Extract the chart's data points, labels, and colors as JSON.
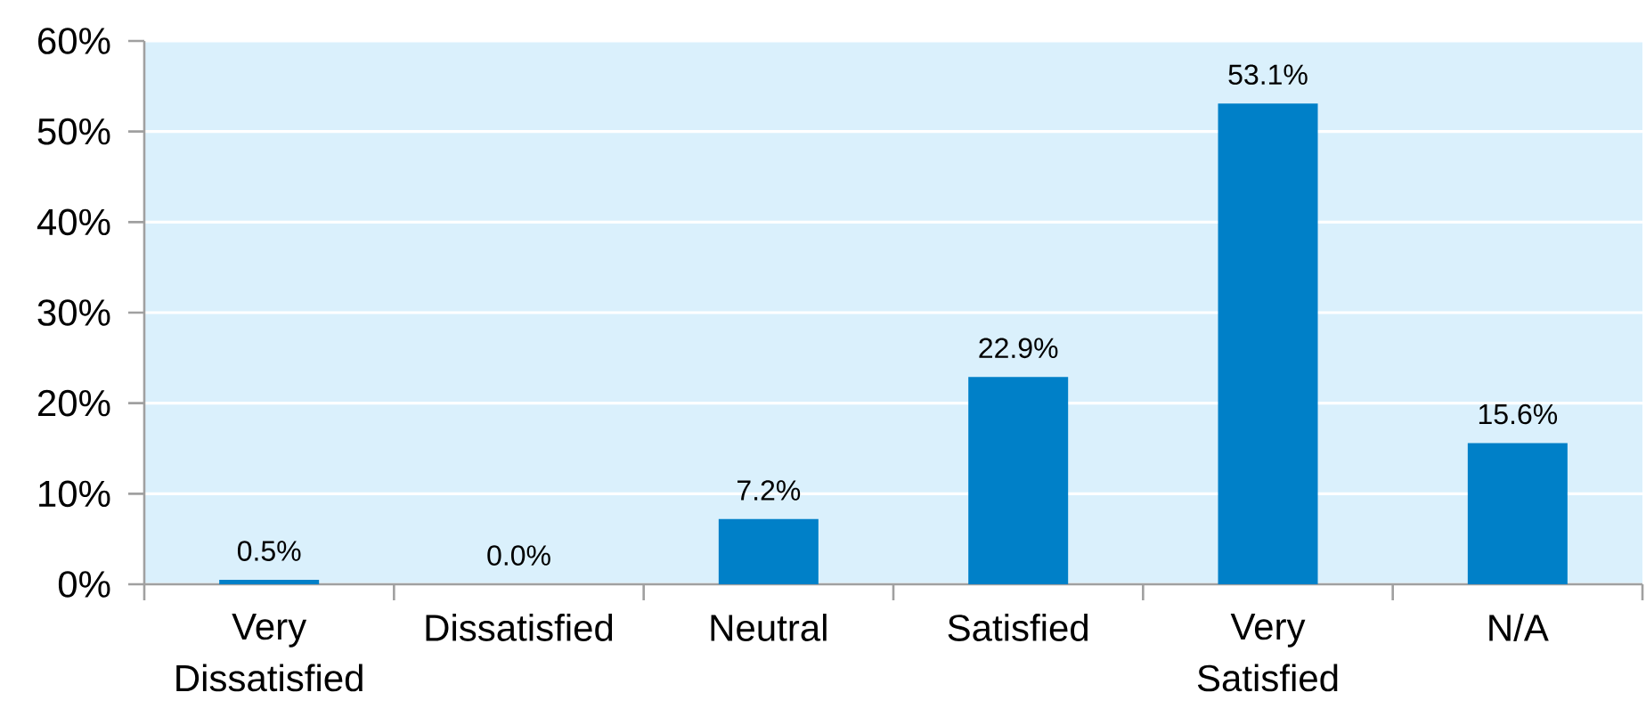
{
  "chart_data": {
    "type": "bar",
    "categories": [
      "Very Dissatisfied",
      "Dissatisfied",
      "Neutral",
      "Satisfied",
      "Very Satisfied",
      "N/A"
    ],
    "values": [
      0.5,
      0.0,
      7.2,
      22.9,
      53.1,
      15.6
    ],
    "color": "#0080c8",
    "value_labels": [
      "0.5%",
      "0.0%",
      "7.2%",
      "22.9%",
      "53.1%",
      "15.6%"
    ],
    "ylim": [
      0,
      60
    ],
    "yticks": [
      {
        "value": 0,
        "label": "0%"
      },
      {
        "value": 10,
        "label": "10%"
      },
      {
        "value": 20,
        "label": "20%"
      },
      {
        "value": 30,
        "label": "30%"
      },
      {
        "value": 40,
        "label": "40%"
      },
      {
        "value": 50,
        "label": "50%"
      },
      {
        "value": 60,
        "label": "60%"
      }
    ],
    "grid": "y"
  }
}
